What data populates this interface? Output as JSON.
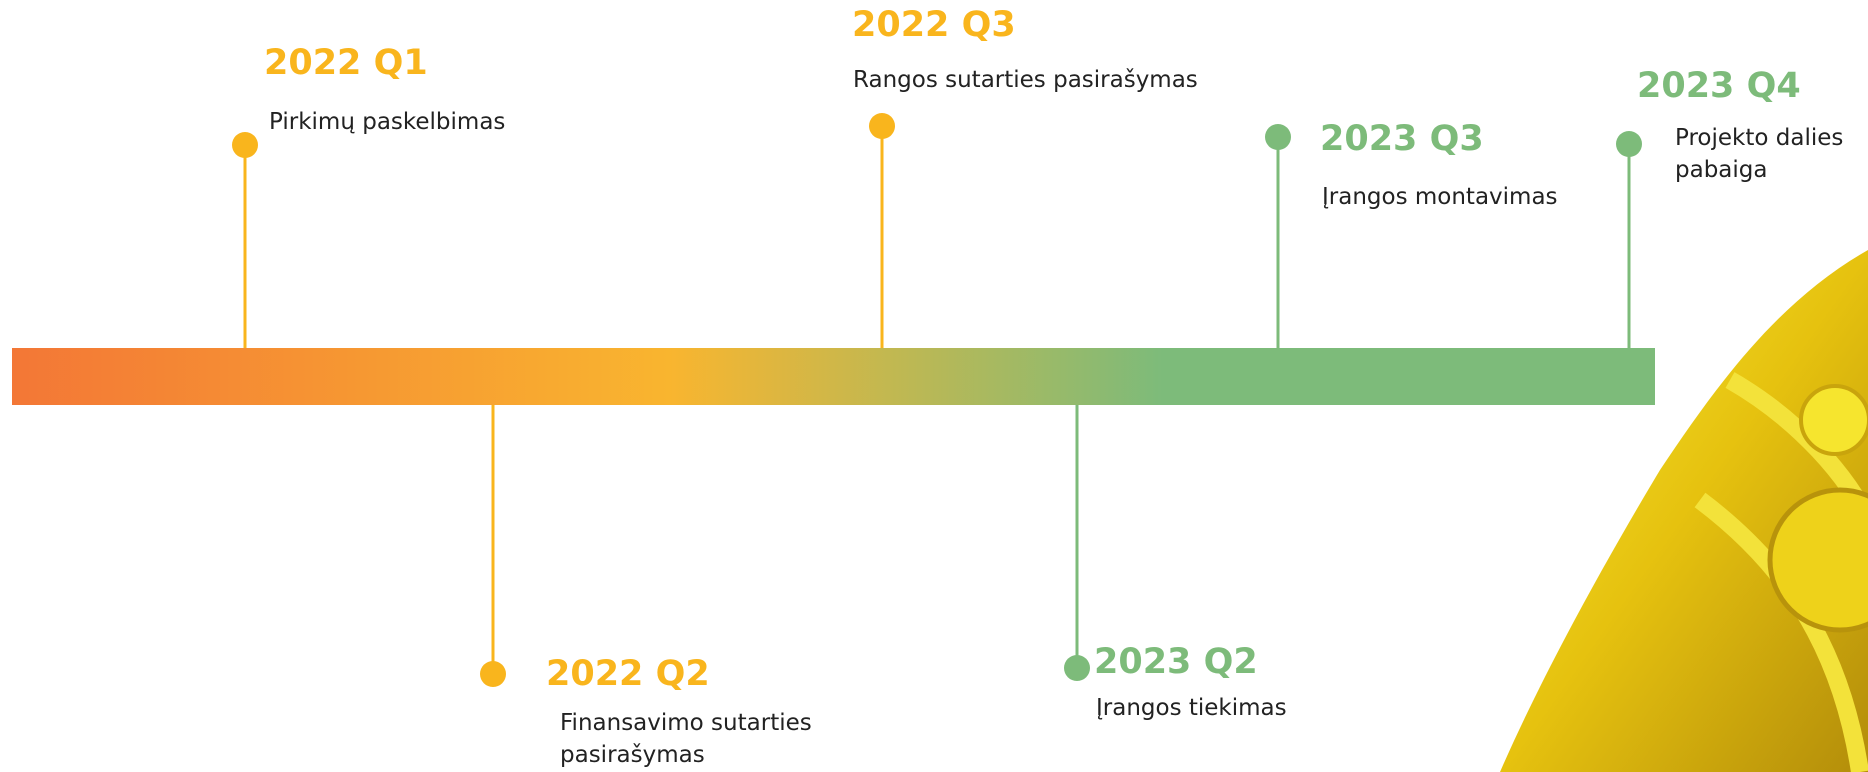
{
  "milestones": [
    {
      "period": "2022 Q1",
      "text": "Pirkimų paskelbimas",
      "color": "#f9b51d"
    },
    {
      "period": "2022 Q2",
      "text": "Finansavimo sutarties pasirašymas",
      "color": "#f9b51d"
    },
    {
      "period": "2022 Q3",
      "text": "Rangos sutarties pasirašymas",
      "color": "#f9b51d"
    },
    {
      "period": "2023 Q2",
      "text": "Įrangos tiekimas",
      "color": "#7dbb7a"
    },
    {
      "period": "2023 Q3",
      "text": "Įrangos montavimas",
      "color": "#7dbb7a"
    },
    {
      "period": "2023 Q4",
      "text": "Projekto dalies pabaiga",
      "color": "#7dbb7a"
    }
  ]
}
